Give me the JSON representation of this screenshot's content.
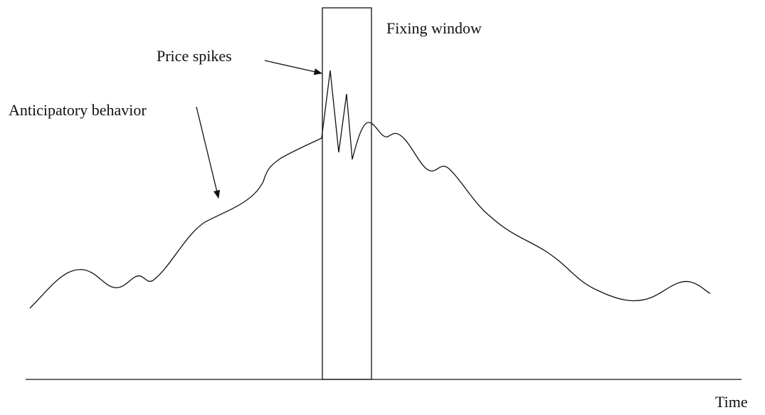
{
  "annotations": {
    "fixing_window": "Fixing window",
    "price_spikes": "Price spikes",
    "anticipatory_behavior": "Anticipatory behavior"
  },
  "axis": {
    "x_label": "Time"
  }
}
